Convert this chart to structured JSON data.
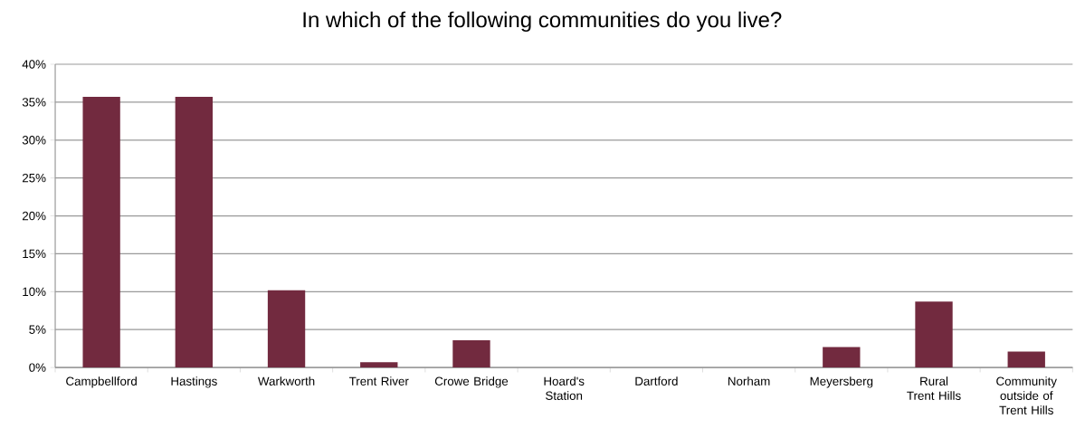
{
  "chart_data": {
    "type": "bar",
    "title": "In which of the following communities do you live?",
    "categories": [
      "Campbellford",
      "Hastings",
      "Warkworth",
      "Trent River",
      "Crowe Bridge",
      "Hoard's Station",
      "Dartford",
      "Norham",
      "Meyersberg",
      "Rural Trent Hills",
      "Community outside of Trent Hills"
    ],
    "values": [
      35.7,
      35.7,
      10.2,
      0.7,
      3.6,
      0,
      0,
      0,
      2.7,
      8.7,
      2.1
    ],
    "color": "#722a3f",
    "ylim": [
      0,
      40
    ],
    "yticks": [
      {
        "value": 0,
        "label": "0%"
      },
      {
        "value": 5,
        "label": "5%"
      },
      {
        "value": 10,
        "label": "10%"
      },
      {
        "value": 15,
        "label": "15%"
      },
      {
        "value": 20,
        "label": "20%"
      },
      {
        "value": 25,
        "label": "25%"
      },
      {
        "value": 30,
        "label": "30%"
      },
      {
        "value": 35,
        "label": "35%"
      },
      {
        "value": 40,
        "label": "40%"
      }
    ],
    "grid": "y"
  }
}
